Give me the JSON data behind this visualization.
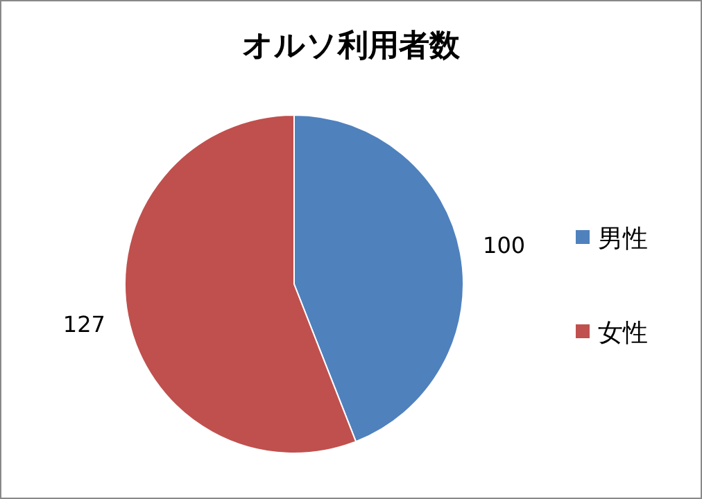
{
  "chart_data": {
    "type": "pie",
    "title": "オルソ利用者数",
    "categories": [
      "男性",
      "女性"
    ],
    "values": [
      100,
      127
    ],
    "colors": [
      "#4f81bd",
      "#c0504d"
    ],
    "data_labels": true,
    "legend": "right"
  }
}
